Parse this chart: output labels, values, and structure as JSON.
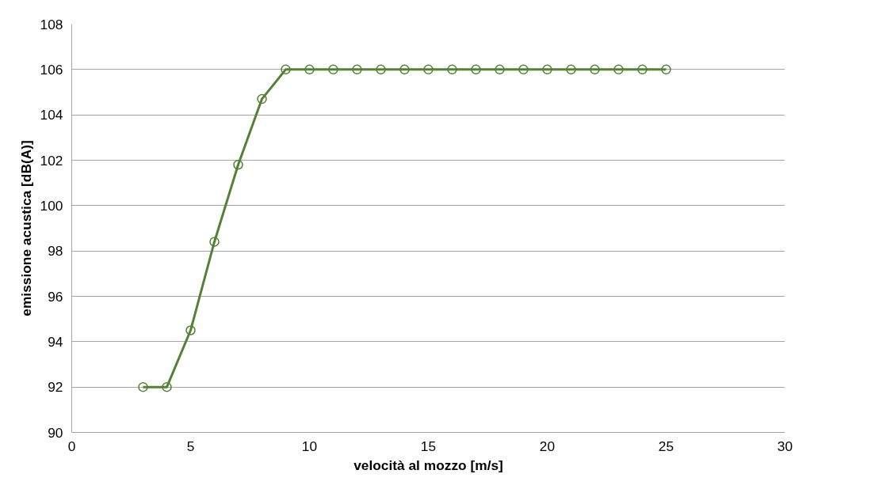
{
  "chart_data": {
    "type": "line",
    "xlabel": "velocità al mozzo [m/s]",
    "ylabel": "emissione acustica [dB(A)]",
    "x": [
      3,
      4,
      5,
      6,
      7,
      8,
      9,
      10,
      11,
      12,
      13,
      14,
      15,
      16,
      17,
      18,
      19,
      20,
      21,
      22,
      23,
      24,
      25
    ],
    "series": [
      {
        "color": "#548235",
        "values": [
          92,
          92,
          94.5,
          98.4,
          101.8,
          104.7,
          106,
          106,
          106,
          106,
          106,
          106,
          106,
          106,
          106,
          106,
          106,
          106,
          106,
          106,
          106,
          106,
          106
        ]
      }
    ],
    "xlim": [
      0,
      30
    ],
    "xticks": [
      0,
      5,
      10,
      15,
      20,
      25,
      30
    ],
    "ylim": [
      90,
      108
    ],
    "yticks": [
      90,
      92,
      94,
      96,
      98,
      100,
      102,
      104,
      106,
      108
    ],
    "grid": "y",
    "marker": "circle",
    "line_style": "solid"
  }
}
